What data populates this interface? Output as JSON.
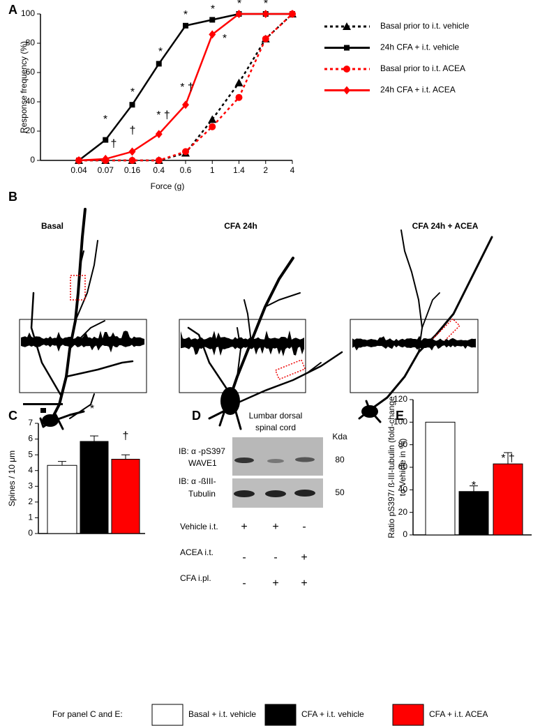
{
  "panel_labels": [
    "A",
    "B",
    "C",
    "D",
    "E"
  ],
  "chart_data": [
    {
      "type": "line",
      "x_label": "Force (g)",
      "y_label": "Response frequency (%)",
      "categories": [
        "0.04",
        "0.07",
        "0.16",
        "0.4",
        "0.6",
        "1",
        "1.4",
        "2",
        "4"
      ],
      "ylim": [
        0,
        100
      ],
      "yticks": [
        0,
        20,
        40,
        60,
        80,
        100
      ],
      "series": [
        {
          "name": "Basal prior to i.t. vehicle",
          "color": "#000000",
          "line_style": "dashed",
          "marker": "triangle",
          "values": [
            0,
            0,
            0,
            0,
            5,
            28,
            53,
            83,
            100
          ]
        },
        {
          "name": "24h CFA + i.t. vehicle",
          "color": "#000000",
          "line_style": "solid",
          "marker": "square",
          "values": [
            0,
            14,
            38,
            66,
            92,
            96,
            100,
            100,
            100
          ]
        },
        {
          "name": "Basal prior to i.t. ACEA",
          "color": "#ff0000",
          "line_style": "dashed",
          "marker": "circle",
          "values": [
            0,
            0,
            0,
            0,
            6,
            23,
            43,
            83,
            100
          ]
        },
        {
          "name": "24h CFA + i.t. ACEA",
          "color": "#ff0000",
          "line_style": "solid",
          "marker": "diamond",
          "values": [
            0,
            1,
            6,
            18,
            38,
            86,
            100,
            100,
            100
          ]
        }
      ],
      "annotations": [
        "*",
        "†",
        "*",
        "†",
        "*",
        "* †",
        "*",
        "* †",
        "*",
        "*",
        "*",
        "*"
      ]
    },
    {
      "type": "bar",
      "y_label": "Spines / 10 μm",
      "categories": [
        null,
        null,
        null
      ],
      "values": [
        4.33,
        5.85,
        4.72
      ],
      "errors": [
        0.25,
        0.35,
        0.28
      ],
      "colors": [
        "#ffffff",
        "#000000",
        "#ff0000"
      ],
      "ylim": [
        0,
        7
      ],
      "yticks": [
        0,
        1,
        2,
        3,
        4,
        5,
        6,
        7
      ],
      "annotations": [
        "*",
        "†"
      ]
    },
    {
      "type": "bar",
      "y_label": [
        "Ratio pS397/ ß-III-tubulin (fold-change",
        "to Vehicle in %)"
      ],
      "categories": [
        null,
        null,
        null
      ],
      "values": [
        100,
        38.5,
        63
      ],
      "errors": [
        0,
        5,
        10
      ],
      "colors": [
        "#ffffff",
        "#000000",
        "#ff0000"
      ],
      "ylim": [
        0,
        120
      ],
      "yticks": [
        0,
        20,
        40,
        60,
        80,
        100,
        120
      ],
      "annotations": [
        "*",
        "* †"
      ]
    }
  ],
  "panel_b": {
    "titles": [
      "Basal",
      "CFA 24h",
      "CFA 24h + ACEA"
    ]
  },
  "panel_d": {
    "title": [
      "Lumbar dorsal",
      "spinal cord"
    ],
    "unit": "Kda",
    "blots": [
      {
        "label": [
          "IB: α -pS397",
          "WAVE1"
        ],
        "size": 80
      },
      {
        "label": [
          "IB: α -ßIII-",
          "Tubulin"
        ],
        "size": 50
      }
    ],
    "treatments": [
      {
        "label": "Vehicle i.t.",
        "signs": [
          "+",
          "+",
          "-"
        ]
      },
      {
        "label": "ACEA i.t.",
        "signs": [
          "-",
          "-",
          "+"
        ]
      },
      {
        "label": "CFA i.pl.",
        "signs": [
          "-",
          "+",
          "+"
        ]
      }
    ]
  },
  "shared_legend": {
    "title": "For panel C and E:",
    "entries": [
      "Basal + i.t. vehicle",
      "CFA + i.t. vehicle",
      "CFA + i.t. ACEA"
    ]
  }
}
